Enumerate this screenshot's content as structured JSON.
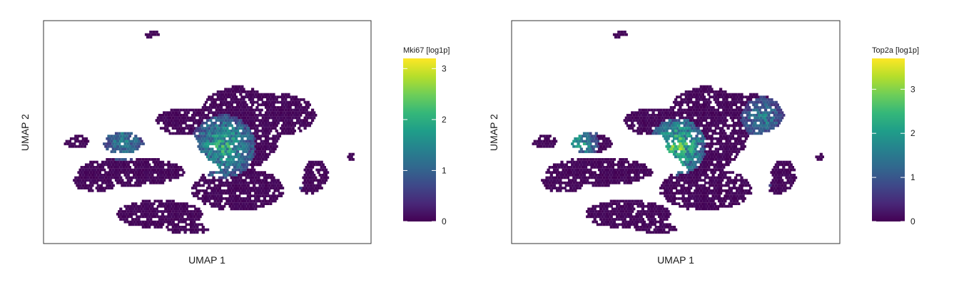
{
  "chart_data": [
    {
      "type": "heatmap",
      "subtype": "hexbin-umap",
      "xlabel": "UMAP 1",
      "ylabel": "UMAP 2",
      "colorbar_title": "Mki67 [log1p]",
      "colorbar_ticks": [
        0,
        1,
        2,
        3
      ],
      "colorbar_range": [
        0,
        3.2
      ],
      "colormap": "viridis",
      "axis_ticks_shown": false,
      "grid": false
    },
    {
      "type": "heatmap",
      "subtype": "hexbin-umap",
      "xlabel": "UMAP 1",
      "ylabel": "UMAP 2",
      "colorbar_title": "Top2a [log1p]",
      "colorbar_ticks": [
        0,
        1,
        2,
        3
      ],
      "colorbar_range": [
        0,
        3.7
      ],
      "colormap": "viridis",
      "axis_ticks_shown": false,
      "grid": false
    }
  ],
  "colors": {
    "viridis": [
      "#440154",
      "#482878",
      "#3e4989",
      "#31688e",
      "#26828e",
      "#1f9e89",
      "#35b779",
      "#6ece58",
      "#b5de2b",
      "#fde725"
    ],
    "frame": "#333333",
    "background": "#ffffff"
  }
}
